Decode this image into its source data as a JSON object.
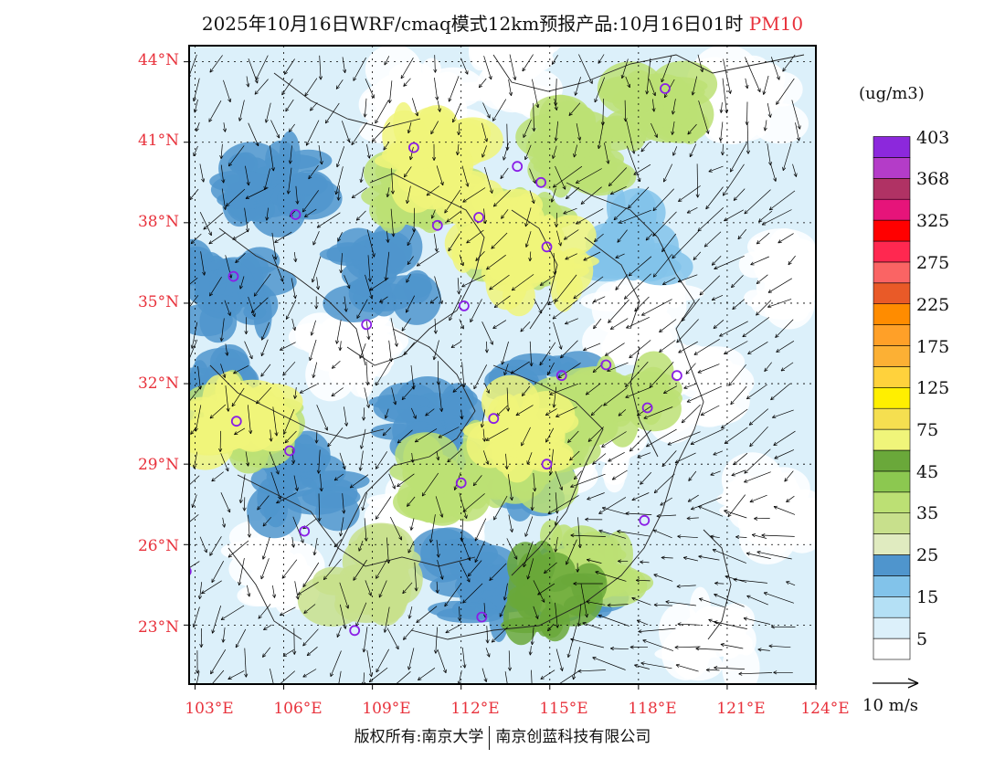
{
  "title": {
    "main": "2025年10月16日WRF/cmaq模式12km预报产品:10月16日01时",
    "pollutant": "PM10"
  },
  "map": {
    "lat_labels": [
      "44°N",
      "41°N",
      "38°N",
      "35°N",
      "32°N",
      "29°N",
      "26°N",
      "23°N"
    ],
    "lon_labels": [
      "103°E",
      "106°E",
      "109°E",
      "112°E",
      "115°E",
      "118°E",
      "121°E",
      "124°E"
    ],
    "lat_range": [
      20.8,
      44.6
    ],
    "lon_range": [
      102.8,
      124.0
    ],
    "stations": [
      {
        "lon": 118.9,
        "lat": 43.0
      },
      {
        "lon": 110.4,
        "lat": 40.8
      },
      {
        "lon": 113.9,
        "lat": 40.1
      },
      {
        "lon": 114.7,
        "lat": 39.5
      },
      {
        "lon": 112.6,
        "lat": 38.2
      },
      {
        "lon": 111.2,
        "lat": 37.9
      },
      {
        "lon": 106.4,
        "lat": 38.3
      },
      {
        "lon": 114.9,
        "lat": 37.1
      },
      {
        "lon": 104.3,
        "lat": 36.0
      },
      {
        "lon": 112.1,
        "lat": 34.9
      },
      {
        "lon": 108.8,
        "lat": 34.2
      },
      {
        "lon": 115.4,
        "lat": 32.3
      },
      {
        "lon": 116.9,
        "lat": 32.7
      },
      {
        "lon": 119.3,
        "lat": 32.3
      },
      {
        "lon": 118.3,
        "lat": 31.1
      },
      {
        "lon": 104.4,
        "lat": 30.6
      },
      {
        "lon": 106.2,
        "lat": 29.5
      },
      {
        "lon": 113.1,
        "lat": 30.7
      },
      {
        "lon": 112.0,
        "lat": 28.3
      },
      {
        "lon": 114.9,
        "lat": 29.0
      },
      {
        "lon": 118.2,
        "lat": 26.9
      },
      {
        "lon": 106.7,
        "lat": 26.5
      },
      {
        "lon": 102.7,
        "lat": 25.0
      },
      {
        "lon": 112.7,
        "lat": 23.3
      },
      {
        "lon": 108.4,
        "lat": 22.8
      }
    ]
  },
  "colorbar": {
    "units": "(ug/m3)",
    "colors": [
      "#ffffff",
      "#dcf0fa",
      "#b4e0f5",
      "#82c3ea",
      "#4f95cd",
      "#e0ebc0",
      "#c8e08c",
      "#bce074",
      "#8cc850",
      "#6aa83a",
      "#f0f57a",
      "#f5df50",
      "#ffef00",
      "#ffd23c",
      "#fcb034",
      "#ffa028",
      "#ff8c00",
      "#e95a28",
      "#fa6464",
      "#ff2850",
      "#ff0000",
      "#e6147a",
      "#b03264",
      "#b43cc8",
      "#8c28dc"
    ],
    "labels": [
      "5",
      "15",
      "25",
      "35",
      "45",
      "75",
      "125",
      "175",
      "225",
      "275",
      "325",
      "368",
      "403"
    ]
  },
  "wind_reference": {
    "label": "10 m/s"
  },
  "copyright": {
    "left": "版权所有:南京大学",
    "right": "南京创蓝科技有限公司"
  }
}
